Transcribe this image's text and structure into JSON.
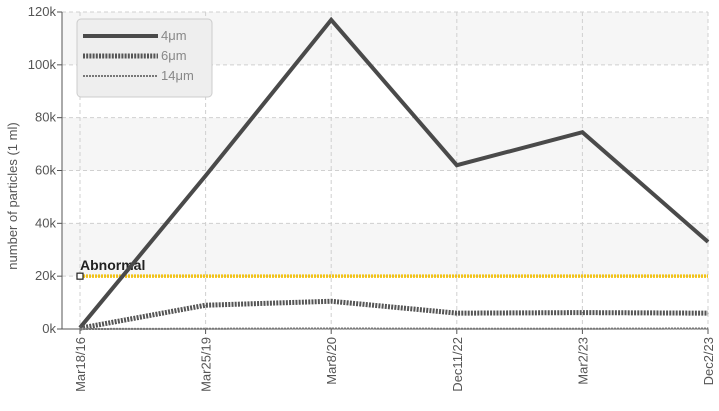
{
  "chart_data": {
    "type": "line",
    "title": "",
    "xlabel": "",
    "ylabel": "number of particles (1 ml)",
    "ylim": [
      0,
      120000
    ],
    "y_ticks": [
      0,
      20000,
      40000,
      60000,
      80000,
      100000,
      120000
    ],
    "y_tick_labels": [
      "0k",
      "20k",
      "40k",
      "60k",
      "80k",
      "100k",
      "120k"
    ],
    "categories": [
      "Mar18/16",
      "Mar25/19",
      "Mar8/20",
      "Dec11/22",
      "Mar2/23",
      "Dec2/23"
    ],
    "grid": true,
    "legend_position": "top-left",
    "series": [
      {
        "name": "4μm",
        "values": [
          500,
          58000,
          117000,
          62000,
          74500,
          33000
        ],
        "color": "#4a4a4a",
        "style": "solid"
      },
      {
        "name": "6μm",
        "values": [
          300,
          9000,
          10500,
          6000,
          6200,
          6000
        ],
        "color": "#555555",
        "style": "dense"
      },
      {
        "name": "14μm",
        "values": [
          0,
          100,
          200,
          100,
          100,
          200
        ],
        "color": "#777777",
        "style": "thin"
      }
    ],
    "threshold": {
      "label": "Abnormal",
      "value": 20000,
      "color": "#f2c318"
    }
  }
}
